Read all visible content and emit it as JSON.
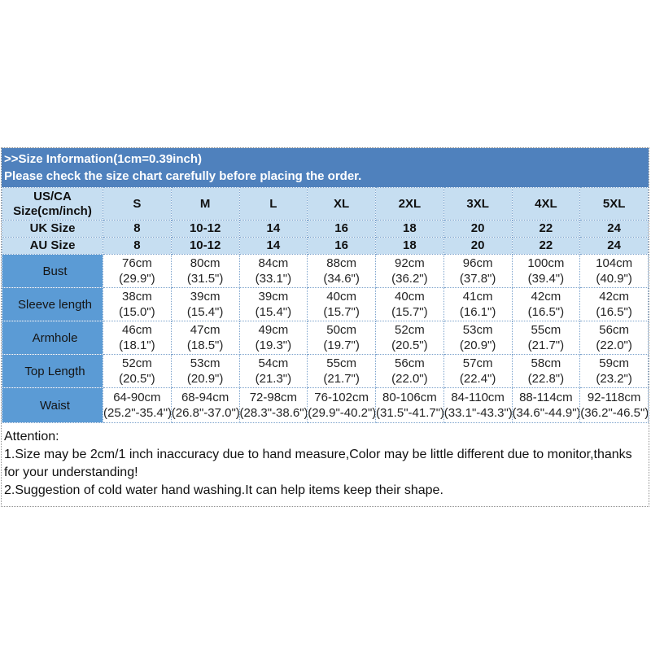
{
  "colors": {
    "header_blue": "#4f81bd",
    "label_blue": "#5b9bd5",
    "light_blue": "#c6def1",
    "grid_dot_blue": "#7ba2cc",
    "outer_dot_gray": "#8f8f8f"
  },
  "header": {
    "line1": ">>Size Information(1cm=0.39inch)",
    "line2": "Please check the size chart carefully before placing the order."
  },
  "table": {
    "corner_label": "US/CA Size(cm/inch)",
    "size_columns": [
      "S",
      "M",
      "L",
      "XL",
      "2XL",
      "3XL",
      "4XL",
      "5XL"
    ],
    "region_rows": [
      {
        "label": "UK Size",
        "values": [
          "8",
          "10-12",
          "14",
          "16",
          "18",
          "20",
          "22",
          "24"
        ]
      },
      {
        "label": "AU Size",
        "values": [
          "8",
          "10-12",
          "14",
          "16",
          "18",
          "20",
          "22",
          "24"
        ]
      }
    ],
    "measurement_rows": [
      {
        "label": "Bust",
        "values": [
          {
            "cm": "76cm",
            "inch": "(29.9\")"
          },
          {
            "cm": "80cm",
            "inch": "(31.5\")"
          },
          {
            "cm": "84cm",
            "inch": "(33.1\")"
          },
          {
            "cm": "88cm",
            "inch": "(34.6\")"
          },
          {
            "cm": "92cm",
            "inch": "(36.2\")"
          },
          {
            "cm": "96cm",
            "inch": "(37.8\")"
          },
          {
            "cm": "100cm",
            "inch": "(39.4\")"
          },
          {
            "cm": "104cm",
            "inch": "(40.9\")"
          }
        ]
      },
      {
        "label": "Sleeve length",
        "values": [
          {
            "cm": "38cm",
            "inch": "(15.0\")"
          },
          {
            "cm": "39cm",
            "inch": "(15.4\")"
          },
          {
            "cm": "39cm",
            "inch": "(15.4\")"
          },
          {
            "cm": "40cm",
            "inch": "(15.7\")"
          },
          {
            "cm": "40cm",
            "inch": "(15.7\")"
          },
          {
            "cm": "41cm",
            "inch": "(16.1\")"
          },
          {
            "cm": "42cm",
            "inch": "(16.5\")"
          },
          {
            "cm": "42cm",
            "inch": "(16.5\")"
          }
        ]
      },
      {
        "label": "Armhole",
        "values": [
          {
            "cm": "46cm",
            "inch": "(18.1\")"
          },
          {
            "cm": "47cm",
            "inch": "(18.5\")"
          },
          {
            "cm": "49cm",
            "inch": "(19.3\")"
          },
          {
            "cm": "50cm",
            "inch": "(19.7\")"
          },
          {
            "cm": "52cm",
            "inch": "(20.5\")"
          },
          {
            "cm": "53cm",
            "inch": "(20.9\")"
          },
          {
            "cm": "55cm",
            "inch": "(21.7\")"
          },
          {
            "cm": "56cm",
            "inch": "(22.0\")"
          }
        ]
      },
      {
        "label": "Top Length",
        "values": [
          {
            "cm": "52cm",
            "inch": "(20.5\")"
          },
          {
            "cm": "53cm",
            "inch": "(20.9\")"
          },
          {
            "cm": "54cm",
            "inch": "(21.3\")"
          },
          {
            "cm": "55cm",
            "inch": "(21.7\")"
          },
          {
            "cm": "56cm",
            "inch": "(22.0\")"
          },
          {
            "cm": "57cm",
            "inch": "(22.4\")"
          },
          {
            "cm": "58cm",
            "inch": "(22.8\")"
          },
          {
            "cm": "59cm",
            "inch": "(23.2\")"
          }
        ]
      },
      {
        "label": "Waist",
        "tall": true,
        "values": [
          {
            "cm": "64-90cm",
            "inch": "(25.2\"-35.4\")"
          },
          {
            "cm": "68-94cm",
            "inch": "(26.8\"-37.0\")"
          },
          {
            "cm": "72-98cm",
            "inch": "(28.3\"-38.6\")"
          },
          {
            "cm": "76-102cm",
            "inch": "(29.9\"-40.2\")"
          },
          {
            "cm": "80-106cm",
            "inch": "(31.5\"-41.7\")"
          },
          {
            "cm": "84-110cm",
            "inch": "(33.1\"-43.3\")"
          },
          {
            "cm": "88-114cm",
            "inch": "(34.6\"-44.9\")"
          },
          {
            "cm": "92-118cm",
            "inch": "(36.2\"-46.5\")"
          }
        ]
      }
    ]
  },
  "attention": {
    "title": "Attention:",
    "note1": "1.Size may be 2cm/1 inch inaccuracy due to hand measure,Color may be little different due to monitor,thanks for your understanding!",
    "note2": "2.Suggestion of cold water hand washing.It can help items keep their shape."
  }
}
